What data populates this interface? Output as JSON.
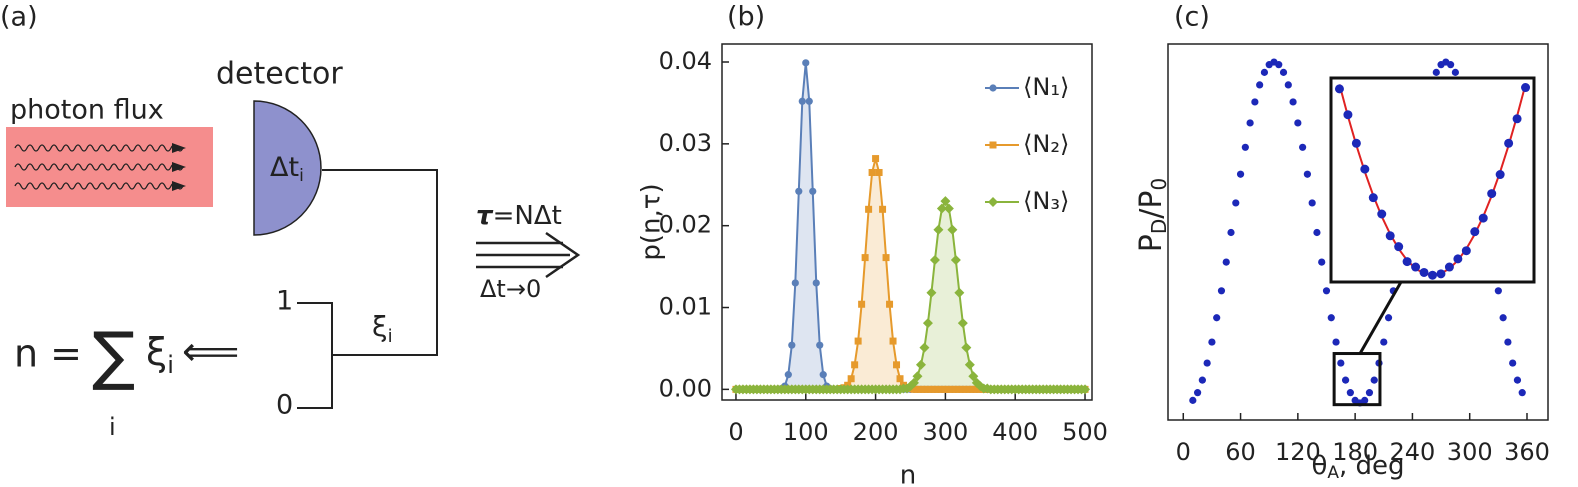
{
  "panel_a": {
    "label": "(a)",
    "detector": "detector",
    "photon_flux": "photon flux",
    "dt": [
      "Δt",
      "i"
    ],
    "arrow_top_symbol": "τ",
    "arrow_top_rest": "=NΔt",
    "arrow_bottom": "Δt→0",
    "level_high": "1",
    "level_low": "0",
    "xi": [
      "ξ",
      "i"
    ],
    "sum_lhs": "n =",
    "sum_symbol": "∑",
    "sum_index": "i",
    "sum_term": [
      "ξ",
      "i"
    ],
    "sum_arrow": "⟸"
  },
  "chart_data": [
    {
      "type": "line",
      "label": "(b)",
      "xlabel": "n",
      "ylabel": "p(n,τ)",
      "xlim": [
        -20,
        510
      ],
      "ylim": [
        -0.0013,
        0.0422
      ],
      "xticks": [
        0,
        100,
        200,
        300,
        400,
        500
      ],
      "yticks": [
        {
          "value": 0,
          "label": "0.00"
        },
        0.01,
        0.02,
        0.03,
        0.04
      ],
      "legend": "upper right",
      "x": [
        0,
        5,
        10,
        15,
        20,
        25,
        30,
        35,
        40,
        45,
        50,
        55,
        60,
        65,
        70,
        75,
        80,
        85,
        90,
        95,
        100,
        105,
        110,
        115,
        120,
        125,
        130,
        135,
        140,
        145,
        150,
        155,
        160,
        165,
        170,
        175,
        180,
        185,
        190,
        195,
        200,
        205,
        210,
        215,
        220,
        225,
        230,
        235,
        240,
        245,
        250,
        255,
        260,
        265,
        270,
        275,
        280,
        285,
        290,
        295,
        300,
        305,
        310,
        315,
        320,
        325,
        330,
        335,
        340,
        345,
        350,
        355,
        360,
        365,
        370,
        375,
        380,
        385,
        390,
        395,
        400,
        405,
        410,
        415,
        420,
        425,
        430,
        435,
        440,
        445,
        450,
        455,
        460,
        465,
        470,
        475,
        480,
        485,
        490,
        495,
        500
      ],
      "series": [
        {
          "name": "⟨N₁⟩",
          "color": "#5a7fb8",
          "marker": "circle",
          "values": [
            0,
            0,
            0,
            0,
            0,
            0,
            0,
            0,
            0,
            0,
            0,
            0,
            0,
            0.0001,
            0.0004,
            0.0018,
            0.0054,
            0.013,
            0.0242,
            0.0352,
            0.0399,
            0.0352,
            0.0242,
            0.013,
            0.0054,
            0.0018,
            0.0004,
            0.0001,
            0,
            0,
            0,
            0,
            0,
            0,
            0,
            0,
            0,
            0,
            0,
            0,
            0,
            0,
            0,
            0,
            0,
            0,
            0,
            0,
            0,
            0,
            0,
            0,
            0,
            0,
            0,
            0,
            0,
            0,
            0,
            0,
            0,
            0,
            0,
            0,
            0,
            0,
            0,
            0,
            0,
            0,
            0,
            0,
            0,
            0,
            0,
            0,
            0,
            0,
            0,
            0,
            0,
            0,
            0,
            0,
            0,
            0,
            0,
            0,
            0,
            0,
            0,
            0,
            0,
            0,
            0,
            0,
            0,
            0,
            0,
            0,
            0
          ]
        },
        {
          "name": "⟨N₂⟩",
          "color": "#e69a2c",
          "marker": "square",
          "values": [
            0,
            0,
            0,
            0,
            0,
            0,
            0,
            0,
            0,
            0,
            0,
            0,
            0,
            0,
            0,
            0,
            0,
            0,
            0,
            0,
            0,
            0,
            0,
            0,
            0,
            0,
            0,
            0,
            0,
            0,
            0.0001,
            0.0002,
            0.0005,
            0.0013,
            0.003,
            0.0059,
            0.0104,
            0.0161,
            0.022,
            0.0265,
            0.0282,
            0.0265,
            0.022,
            0.0161,
            0.0104,
            0.0059,
            0.003,
            0.0013,
            0.0005,
            0.0002,
            0.0001,
            0,
            0,
            0,
            0,
            0,
            0,
            0,
            0,
            0,
            0,
            0,
            0,
            0,
            0,
            0,
            0,
            0,
            0,
            0,
            0,
            0,
            0,
            0,
            0,
            0,
            0,
            0,
            0,
            0,
            0,
            0,
            0,
            0,
            0,
            0,
            0,
            0,
            0,
            0,
            0,
            0,
            0,
            0,
            0,
            0,
            0,
            0,
            0,
            0,
            0
          ]
        },
        {
          "name": "⟨N₃⟩",
          "color": "#8ab43c",
          "marker": "diamond",
          "values": [
            0,
            0,
            0,
            0,
            0,
            0,
            0,
            0,
            0,
            0,
            0,
            0,
            0,
            0,
            0,
            0,
            0,
            0,
            0,
            0,
            0,
            0,
            0,
            0,
            0,
            0,
            0,
            0,
            0,
            0,
            0,
            0,
            0,
            0,
            0,
            0,
            0,
            0,
            0,
            0,
            0,
            0,
            0,
            0,
            0,
            0,
            0,
            0,
            0.0001,
            0.0001,
            0.0004,
            0.0008,
            0.0016,
            0.003,
            0.0051,
            0.0081,
            0.0118,
            0.0158,
            0.0195,
            0.0221,
            0.023,
            0.0221,
            0.0195,
            0.0158,
            0.0118,
            0.0081,
            0.0051,
            0.003,
            0.0016,
            0.0008,
            0.0004,
            0.0001,
            0.0001,
            0,
            0,
            0,
            0,
            0,
            0,
            0,
            0,
            0,
            0,
            0,
            0,
            0,
            0,
            0,
            0,
            0,
            0,
            0,
            0,
            0,
            0,
            0,
            0,
            0,
            0,
            0,
            0
          ]
        }
      ]
    },
    {
      "type": "scatter",
      "label": "(c)",
      "xlabel": [
        "θ",
        "A",
        ", deg"
      ],
      "ylabel": [
        "P",
        "D",
        "/P",
        "0"
      ],
      "xlim": [
        -16,
        382
      ],
      "ylim": [
        -0.05,
        1.053
      ],
      "xticks": [
        0,
        60,
        120,
        180,
        240,
        300,
        360
      ],
      "color": "#1c28b8",
      "x": [
        10,
        15,
        20,
        25,
        30,
        35,
        40,
        45,
        50,
        55,
        60,
        65,
        70,
        75,
        80,
        85,
        90,
        95,
        100,
        105,
        110,
        115,
        120,
        125,
        130,
        135,
        140,
        145,
        150,
        155,
        160,
        165,
        170,
        175,
        180,
        185,
        190,
        195,
        200,
        205,
        210,
        215,
        220,
        225,
        230,
        235,
        240,
        245,
        250,
        255,
        260,
        265,
        270,
        275,
        280,
        285,
        290,
        295,
        300,
        305,
        310,
        315,
        320,
        325,
        330,
        335,
        340,
        345,
        350,
        355
      ],
      "values": [
        0.0076,
        0.0302,
        0.067,
        0.117,
        0.1786,
        0.25,
        0.329,
        0.4132,
        0.5,
        0.5868,
        0.671,
        0.75,
        0.8214,
        0.883,
        0.933,
        0.9698,
        0.9924,
        1,
        0.9924,
        0.9698,
        0.933,
        0.883,
        0.8214,
        0.75,
        0.671,
        0.5868,
        0.5,
        0.4132,
        0.329,
        0.25,
        0.1786,
        0.117,
        0.067,
        0.0302,
        0.0076,
        0,
        0.0076,
        0.0302,
        0.067,
        0.117,
        0.1786,
        0.25,
        0.329,
        0.4132,
        0.5,
        0.5868,
        0.671,
        0.75,
        0.8214,
        0.883,
        0.933,
        0.9698,
        0.9924,
        1,
        0.9924,
        0.9698,
        0.933,
        0.883,
        0.8214,
        0.75,
        0.671,
        0.5868,
        0.5,
        0.4132,
        0.329,
        0.25,
        0.1786,
        0.117,
        0.067,
        0.0302
      ],
      "inset": {
        "xlim": [
          158,
          206
        ],
        "ylim": [
          -0.005,
          0.145
        ],
        "x": [
          160,
          162,
          164,
          166,
          168,
          170,
          172,
          174,
          176,
          178,
          180,
          182,
          184,
          186,
          188,
          190,
          192,
          194,
          196,
          198,
          200,
          202,
          204
        ],
        "values": [
          0.137,
          0.118,
          0.097,
          0.078,
          0.057,
          0.045,
          0.029,
          0.021,
          0.01,
          0.006,
          0.002,
          0,
          0.001,
          0.006,
          0.012,
          0.018,
          0.032,
          0.042,
          0.06,
          0.074,
          0.097,
          0.115,
          0.138
        ],
        "fit_color": "#e02222",
        "fit": [
          0.1403,
          0.117,
          0.0955,
          0.076,
          0.0585,
          0.0432,
          0.0302,
          0.0194,
          0.0109,
          0.0049,
          0.0012,
          0,
          0.0012,
          0.0049,
          0.0109,
          0.0194,
          0.0302,
          0.0432,
          0.0585,
          0.076,
          0.0955,
          0.117,
          0.1403
        ]
      }
    }
  ]
}
